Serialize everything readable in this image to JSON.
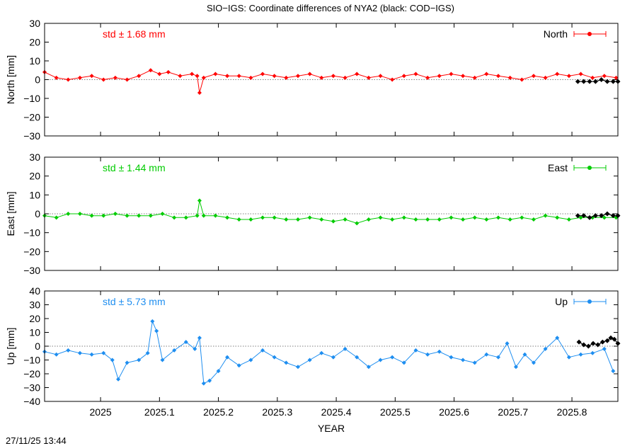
{
  "page": {
    "title": "SIO−IGS: Coordinate differences of NYA2 (black: COD−IGS)",
    "xlabel": "YEAR",
    "timestamp": "27/11/25 13:44"
  },
  "chart_data": [
    {
      "type": "line",
      "panel": "north",
      "ylabel": "North [mm]",
      "legend": "North",
      "legend_position": "top-right",
      "std_label": "std ± 1.68 mm",
      "color": "#ff0000",
      "comparison_color": "#000000",
      "xlim": [
        2024.905,
        2025.878
      ],
      "ylim": [
        -30,
        30
      ],
      "yticks": [
        -30,
        -20,
        -10,
        0,
        10,
        20,
        30
      ],
      "ytick_labels": [
        "−30",
        "−20",
        "−10",
        "0",
        "10",
        "20",
        "30"
      ],
      "xticks": [
        2025,
        2025.1,
        2025.2,
        2025.3,
        2025.4,
        2025.5,
        2025.6,
        2025.7,
        2025.8
      ],
      "xtick_labels": [
        "2025",
        "2025.1",
        "2025.2",
        "2025.3",
        "2025.4",
        "2025.5",
        "2025.6",
        "2025.7",
        "2025.8"
      ],
      "zero_line": true,
      "series": [
        {
          "x": [
            2024.905,
            2024.925,
            2024.945,
            2024.965,
            2024.985,
            2025.005,
            2025.025,
            2025.045,
            2025.065,
            2025.085,
            2025.1,
            2025.115,
            2025.135,
            2025.155,
            2025.164,
            2025.168,
            2025.175,
            2025.195,
            2025.215,
            2025.235,
            2025.255,
            2025.275,
            2025.295,
            2025.315,
            2025.335,
            2025.355,
            2025.375,
            2025.395,
            2025.415,
            2025.435,
            2025.455,
            2025.475,
            2025.495,
            2025.515,
            2025.535,
            2025.555,
            2025.575,
            2025.595,
            2025.615,
            2025.635,
            2025.655,
            2025.675,
            2025.695,
            2025.715,
            2025.735,
            2025.755,
            2025.775,
            2025.795,
            2025.815,
            2025.835,
            2025.855,
            2025.875
          ],
          "y": [
            4,
            1,
            0,
            1,
            2,
            0,
            1,
            0,
            2,
            5,
            3,
            4,
            2,
            3,
            2,
            -7,
            1,
            3,
            2,
            2,
            1,
            3,
            2,
            1,
            2,
            3,
            1,
            2,
            1,
            3,
            1,
            2,
            0,
            2,
            3,
            1,
            2,
            3,
            2,
            1,
            3,
            2,
            1,
            0,
            2,
            1,
            3,
            2,
            3,
            1,
            2,
            1
          ]
        }
      ],
      "comparison": {
        "x": [
          2025.81,
          2025.82,
          2025.83,
          2025.84,
          2025.85,
          2025.86,
          2025.87,
          2025.878
        ],
        "y": [
          -1,
          -1,
          -1,
          -1,
          0,
          -1,
          -1,
          -1
        ]
      }
    },
    {
      "type": "line",
      "panel": "east",
      "ylabel": "East [mm]",
      "legend": "East",
      "legend_position": "top-right",
      "std_label": "std ± 1.44 mm",
      "color": "#00cc00",
      "comparison_color": "#000000",
      "xlim": [
        2024.905,
        2025.878
      ],
      "ylim": [
        -30,
        30
      ],
      "yticks": [
        -30,
        -20,
        -10,
        0,
        10,
        20,
        30
      ],
      "ytick_labels": [
        "−30",
        "−20",
        "−10",
        "0",
        "10",
        "20",
        "30"
      ],
      "xticks": [
        2025,
        2025.1,
        2025.2,
        2025.3,
        2025.4,
        2025.5,
        2025.6,
        2025.7,
        2025.8
      ],
      "xtick_labels": [
        "2025",
        "2025.1",
        "2025.2",
        "2025.3",
        "2025.4",
        "2025.5",
        "2025.6",
        "2025.7",
        "2025.8"
      ],
      "zero_line": true,
      "series": [
        {
          "x": [
            2024.905,
            2024.925,
            2024.945,
            2024.965,
            2024.985,
            2025.005,
            2025.025,
            2025.045,
            2025.065,
            2025.085,
            2025.105,
            2025.125,
            2025.145,
            2025.164,
            2025.168,
            2025.175,
            2025.195,
            2025.215,
            2025.235,
            2025.255,
            2025.275,
            2025.295,
            2025.315,
            2025.335,
            2025.355,
            2025.375,
            2025.395,
            2025.415,
            2025.435,
            2025.455,
            2025.475,
            2025.495,
            2025.515,
            2025.535,
            2025.555,
            2025.575,
            2025.595,
            2025.615,
            2025.635,
            2025.655,
            2025.675,
            2025.695,
            2025.715,
            2025.735,
            2025.755,
            2025.775,
            2025.795,
            2025.815,
            2025.835,
            2025.855,
            2025.875
          ],
          "y": [
            -1,
            -2,
            0,
            0,
            -1,
            -1,
            0,
            -1,
            -1,
            -1,
            0,
            -2,
            -2,
            -1,
            7,
            -1,
            -1,
            -2,
            -3,
            -3,
            -2,
            -2,
            -3,
            -3,
            -2,
            -3,
            -4,
            -3,
            -5,
            -3,
            -2,
            -3,
            -2,
            -3,
            -3,
            -3,
            -2,
            -3,
            -2,
            -3,
            -2,
            -3,
            -2,
            -3,
            -1,
            -2,
            -3,
            -2,
            -2,
            -2,
            -2
          ]
        }
      ],
      "comparison": {
        "x": [
          2025.81,
          2025.82,
          2025.83,
          2025.84,
          2025.85,
          2025.86,
          2025.87,
          2025.878
        ],
        "y": [
          -1,
          -1,
          -2,
          -1,
          -1,
          0,
          -1,
          -1
        ]
      }
    },
    {
      "type": "line",
      "panel": "up",
      "ylabel": "Up [mm]",
      "legend": "Up",
      "legend_position": "top-right",
      "std_label": "std ± 5.73 mm",
      "color": "#1e8ef0",
      "comparison_color": "#000000",
      "xlim": [
        2024.905,
        2025.878
      ],
      "ylim": [
        -40,
        40
      ],
      "yticks": [
        -40,
        -30,
        -20,
        -10,
        0,
        10,
        20,
        30,
        40
      ],
      "ytick_labels": [
        "−40",
        "−30",
        "−20",
        "−10",
        "0",
        "10",
        "20",
        "30",
        "40"
      ],
      "xticks": [
        2025,
        2025.1,
        2025.2,
        2025.3,
        2025.4,
        2025.5,
        2025.6,
        2025.7,
        2025.8
      ],
      "xtick_labels": [
        "2025",
        "2025.1",
        "2025.2",
        "2025.3",
        "2025.4",
        "2025.5",
        "2025.6",
        "2025.7",
        "2025.8"
      ],
      "zero_line": true,
      "series": [
        {
          "x": [
            2024.905,
            2024.925,
            2024.945,
            2024.965,
            2024.985,
            2025.005,
            2025.02,
            2025.03,
            2025.045,
            2025.065,
            2025.08,
            2025.088,
            2025.095,
            2025.105,
            2025.125,
            2025.145,
            2025.16,
            2025.168,
            2025.175,
            2025.185,
            2025.2,
            2025.215,
            2025.235,
            2025.255,
            2025.275,
            2025.295,
            2025.315,
            2025.335,
            2025.355,
            2025.375,
            2025.395,
            2025.415,
            2025.435,
            2025.455,
            2025.475,
            2025.495,
            2025.515,
            2025.535,
            2025.555,
            2025.575,
            2025.595,
            2025.615,
            2025.635,
            2025.655,
            2025.675,
            2025.69,
            2025.705,
            2025.72,
            2025.735,
            2025.755,
            2025.775,
            2025.795,
            2025.815,
            2025.835,
            2025.855,
            2025.87
          ],
          "y": [
            -4,
            -6,
            -3,
            -5,
            -6,
            -5,
            -10,
            -24,
            -12,
            -10,
            -5,
            18,
            11,
            -10,
            -3,
            3,
            -2,
            6,
            -27,
            -25,
            -18,
            -8,
            -14,
            -10,
            -3,
            -8,
            -12,
            -15,
            -10,
            -5,
            -8,
            -2,
            -8,
            -15,
            -10,
            -8,
            -12,
            -3,
            -6,
            -4,
            -8,
            -10,
            -12,
            -6,
            -8,
            2,
            -15,
            -6,
            -12,
            -2,
            6,
            -8,
            -6,
            -5,
            -2,
            -18
          ]
        }
      ],
      "comparison": {
        "x": [
          2025.812,
          2025.82,
          2025.828,
          2025.836,
          2025.844,
          2025.852,
          2025.86,
          2025.866,
          2025.872,
          2025.878
        ],
        "y": [
          3,
          1,
          0,
          2,
          1,
          3,
          4,
          6,
          5,
          2
        ]
      }
    }
  ]
}
